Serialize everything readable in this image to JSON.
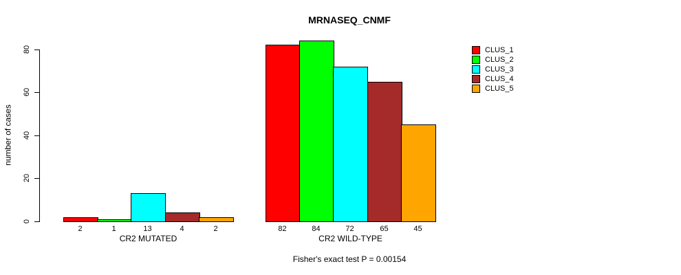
{
  "title": "MRNASEQ_CNMF",
  "chart_data": {
    "type": "bar",
    "title": "MRNASEQ_CNMF",
    "xlabel": "",
    "ylabel": "number of cases",
    "ylim": [
      0,
      80
    ],
    "yticks": [
      0,
      20,
      40,
      60,
      80
    ],
    "grid": false,
    "legend_position": "top-right",
    "series_names": [
      "CLUS_1",
      "CLUS_2",
      "CLUS_3",
      "CLUS_4",
      "CLUS_5"
    ],
    "colors": [
      "#FF0000",
      "#00FF00",
      "#00FFFF",
      "#A52A2A",
      "#FFA500"
    ],
    "groups": [
      {
        "label": "CR2 MUTATED",
        "values": [
          2,
          1,
          13,
          4,
          2
        ]
      },
      {
        "label": "CR2 WILD-TYPE",
        "values": [
          82,
          84,
          72,
          65,
          45
        ]
      }
    ],
    "bar_value_labels": [
      [
        2,
        1,
        13,
        4,
        2
      ],
      [
        82,
        84,
        72,
        65,
        45
      ]
    ],
    "annotation": "Fisher's exact test P = 0.00154"
  },
  "legend": {
    "items": [
      {
        "label": "CLUS_1",
        "color": "#FF0000"
      },
      {
        "label": "CLUS_2",
        "color": "#00FF00"
      },
      {
        "label": "CLUS_3",
        "color": "#00FFFF"
      },
      {
        "label": "CLUS_4",
        "color": "#A52A2A"
      },
      {
        "label": "CLUS_5",
        "color": "#FFA500"
      }
    ]
  }
}
